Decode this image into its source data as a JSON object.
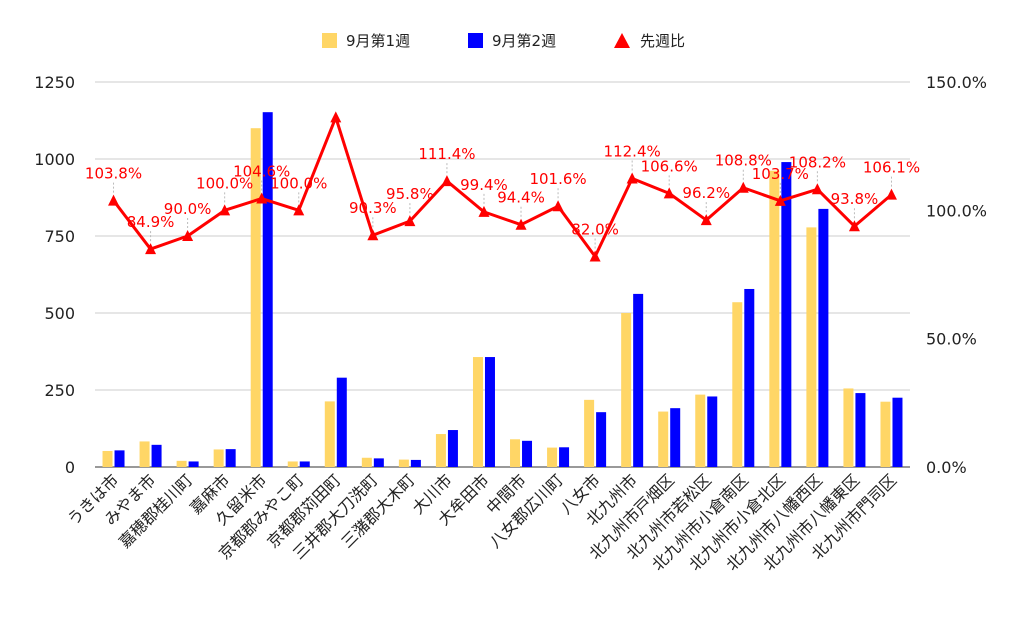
{
  "chart_data": {
    "type": "bar",
    "categories": [
      "うきは市",
      "みやま市",
      "嘉穂郡桂川町",
      "嘉麻市",
      "久留米市",
      "京都郡みやこ町",
      "京都郡苅田町",
      "三井郡大刀洗町",
      "三潴郡大木町",
      "大川市",
      "大牟田市",
      "中間市",
      "八女郡広川町",
      "八女市",
      "北九州市",
      "北九州市戸畑区",
      "北九州市若松区",
      "北九州市小倉南区",
      "北九州市小倉北区",
      "北九州市八幡西区",
      "北九州市八幡東区",
      "北九州市門司区"
    ],
    "series": [
      {
        "name": "9月第1週",
        "color": "#ffd666",
        "axis": "left",
        "values": [
          52,
          83,
          20,
          57,
          1100,
          18,
          213,
          30,
          24,
          107,
          357,
          90,
          63,
          218,
          500,
          180,
          235,
          535,
          962,
          778,
          255,
          212
        ]
      },
      {
        "name": "9月第2週",
        "color": "#0000ff",
        "axis": "left",
        "values": [
          54,
          72,
          18,
          58,
          1152,
          18,
          290,
          28,
          23,
          120,
          357,
          85,
          64,
          178,
          562,
          191,
          229,
          578,
          990,
          838,
          240,
          225
        ]
      },
      {
        "name": "先週比",
        "color": "#ff0000",
        "axis": "right",
        "type": "line",
        "values": [
          103.8,
          84.9,
          90.0,
          100.0,
          104.6,
          100.0,
          136.2,
          90.3,
          95.8,
          111.4,
          99.4,
          94.4,
          101.6,
          82.0,
          112.4,
          106.6,
          96.2,
          108.8,
          103.7,
          108.2,
          93.8,
          106.1
        ],
        "labels": [
          "103.8%",
          "84.9%",
          "90.0%",
          "100.0%",
          "104.6%",
          "100.0%",
          "",
          "90.3%",
          "95.8%",
          "111.4%",
          "99.4%",
          "94.4%",
          "101.6%",
          "82.0%",
          "112.4%",
          "106.6%",
          "96.2%",
          "108.8%",
          "103.7%",
          "108.2%",
          "93.8%",
          "106.1%"
        ]
      }
    ],
    "y_left": {
      "ylim": [
        0,
        1250
      ],
      "ticks": [
        "0",
        "250",
        "500",
        "750",
        "1000",
        "1250"
      ],
      "tick_values": [
        0,
        250,
        500,
        750,
        1000,
        1250
      ]
    },
    "y_right": {
      "ylim": [
        0,
        150
      ],
      "ticks": [
        "0.0%",
        "50.0%",
        "100.0%",
        "150.0%"
      ],
      "tick_values": [
        0,
        50,
        100,
        150
      ]
    },
    "grid": true,
    "legend_position": "top-center"
  }
}
